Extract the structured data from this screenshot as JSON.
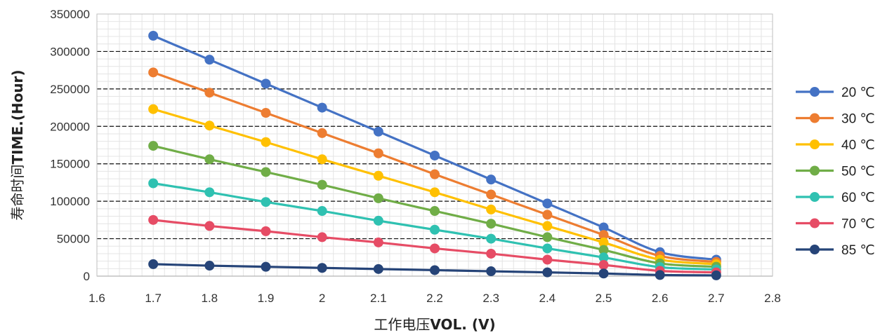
{
  "chart_data": {
    "type": "line",
    "xlabel_prefix": "工作电压",
    "xlabel_suffix": "VOL. (V)",
    "ylabel_prefix": "寿命时间",
    "ylabel_suffix": "TIME.(Hour)",
    "xlim": [
      1.6,
      2.8
    ],
    "ylim": [
      0,
      350000
    ],
    "x_ticks": [
      "1.6",
      "1.7",
      "1.8",
      "1.9",
      "2",
      "2.1",
      "2.2",
      "2.3",
      "2.4",
      "2.5",
      "2.6",
      "2.7",
      "2.8"
    ],
    "y_ticks": [
      "0",
      "50000",
      "100000",
      "150000",
      "200000",
      "250000",
      "300000",
      "350000"
    ],
    "grid": true,
    "legend_position": "right",
    "x": [
      1.7,
      1.8,
      1.9,
      2.0,
      2.1,
      2.2,
      2.3,
      2.4,
      2.5,
      2.6,
      2.7
    ],
    "series": [
      {
        "name": "20 ℃",
        "color": "#4472C4",
        "values": [
          321000,
          289000,
          257000,
          225000,
          193000,
          161000,
          129000,
          97000,
          65000,
          32000,
          22000
        ]
      },
      {
        "name": "30 ℃",
        "color": "#ED7D31",
        "values": [
          272000,
          245000,
          218000,
          191000,
          164000,
          136000,
          109000,
          82000,
          55000,
          27000,
          19000
        ]
      },
      {
        "name": "40 ℃",
        "color": "#FFC000",
        "values": [
          223000,
          201000,
          179000,
          156000,
          134000,
          112000,
          89000,
          67000,
          45000,
          22000,
          16000
        ]
      },
      {
        "name": "50 ℃",
        "color": "#70AD47",
        "values": [
          174000,
          156000,
          139000,
          122000,
          104000,
          87000,
          70000,
          52000,
          35000,
          17000,
          12500
        ]
      },
      {
        "name": "60 ℃",
        "color": "#2FC1B1",
        "values": [
          124000,
          112000,
          99000,
          87000,
          74000,
          62000,
          50000,
          37000,
          25000,
          12000,
          9000
        ]
      },
      {
        "name": "70 ℃",
        "color": "#E64C65",
        "values": [
          75000,
          67000,
          60000,
          52000,
          45000,
          37000,
          30000,
          22000,
          15000,
          7000,
          5000
        ]
      },
      {
        "name": "85 ℃",
        "color": "#264478",
        "values": [
          16000,
          14000,
          12500,
          11000,
          9500,
          8000,
          6500,
          5000,
          3500,
          1500,
          1000
        ]
      }
    ]
  }
}
